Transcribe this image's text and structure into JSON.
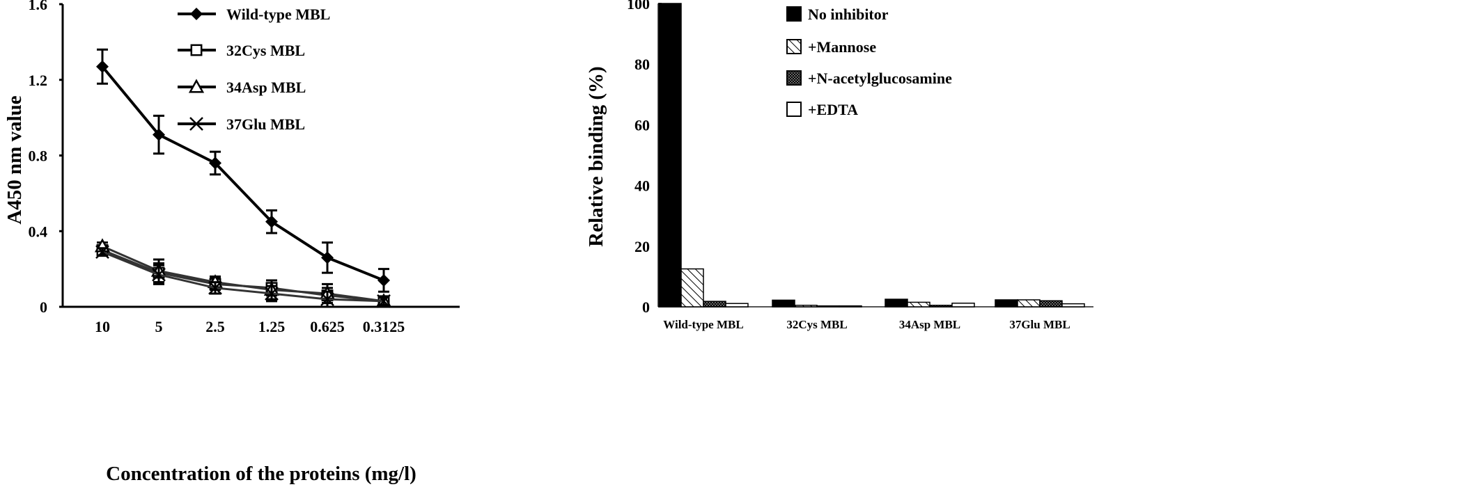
{
  "chart_data": [
    {
      "type": "line",
      "xlabel": "Concentration of the proteins (mg/l)",
      "ylabel": "A450 nm value",
      "ylim": [
        0,
        1.6
      ],
      "yticks": [
        "0",
        "0.4",
        "0.8",
        "1.2",
        "1.6"
      ],
      "yticks_values": [
        0,
        0.4,
        0.8,
        1.2,
        1.6
      ],
      "categories": [
        "10",
        "5",
        "2.5",
        "1.25",
        "0.625",
        "0.3125"
      ],
      "legend_position": "top-right",
      "series": [
        {
          "name": "Wild-type MBL",
          "marker": "filled-diamond",
          "values": [
            1.27,
            0.91,
            0.76,
            0.45,
            0.26,
            0.14
          ],
          "errors": [
            0.09,
            0.1,
            0.06,
            0.06,
            0.08,
            0.06
          ]
        },
        {
          "name": "32Cys MBL",
          "marker": "open-square",
          "values": [
            0.3,
            0.18,
            0.12,
            0.1,
            0.06,
            0.03
          ],
          "errors": [
            0.02,
            0.05,
            0.03,
            0.04,
            0.04,
            0.02
          ]
        },
        {
          "name": "34Asp MBL",
          "marker": "open-triangle",
          "values": [
            0.32,
            0.19,
            0.13,
            0.09,
            0.07,
            0.03
          ],
          "errors": [
            0.02,
            0.06,
            0.03,
            0.05,
            0.05,
            0.02
          ]
        },
        {
          "name": "37Glu MBL",
          "marker": "cross",
          "values": [
            0.29,
            0.17,
            0.1,
            0.07,
            0.04,
            0.03
          ],
          "errors": [
            0.02,
            0.05,
            0.03,
            0.04,
            0.04,
            0.02
          ]
        }
      ]
    },
    {
      "type": "bar",
      "xlabel": "",
      "ylabel": "Relative binding (%)",
      "ylim": [
        0,
        100
      ],
      "yticks": [
        "0",
        "20",
        "40",
        "60",
        "80",
        "100"
      ],
      "yticks_values": [
        0,
        20,
        40,
        60,
        80,
        100
      ],
      "categories": [
        "Wild-type MBL",
        "32Cys MBL",
        "34Asp MBL",
        "37Glu MBL"
      ],
      "legend_position": "top-right",
      "series": [
        {
          "name": "No inhibitor",
          "fill": "solid",
          "values": [
            100,
            2.2,
            2.5,
            2.3
          ]
        },
        {
          "name": "+Mannose",
          "fill": "hatched",
          "values": [
            12.5,
            0.5,
            1.5,
            2.3
          ]
        },
        {
          "name": "+N-acetylglucosamine",
          "fill": "checkered",
          "values": [
            1.8,
            0.3,
            0.5,
            2.0
          ]
        },
        {
          "name": "+EDTA",
          "fill": "white",
          "values": [
            1.1,
            0.3,
            1.2,
            1.0
          ]
        }
      ]
    }
  ],
  "colors": {
    "ink": "#000000",
    "axis_right": "#555555"
  }
}
